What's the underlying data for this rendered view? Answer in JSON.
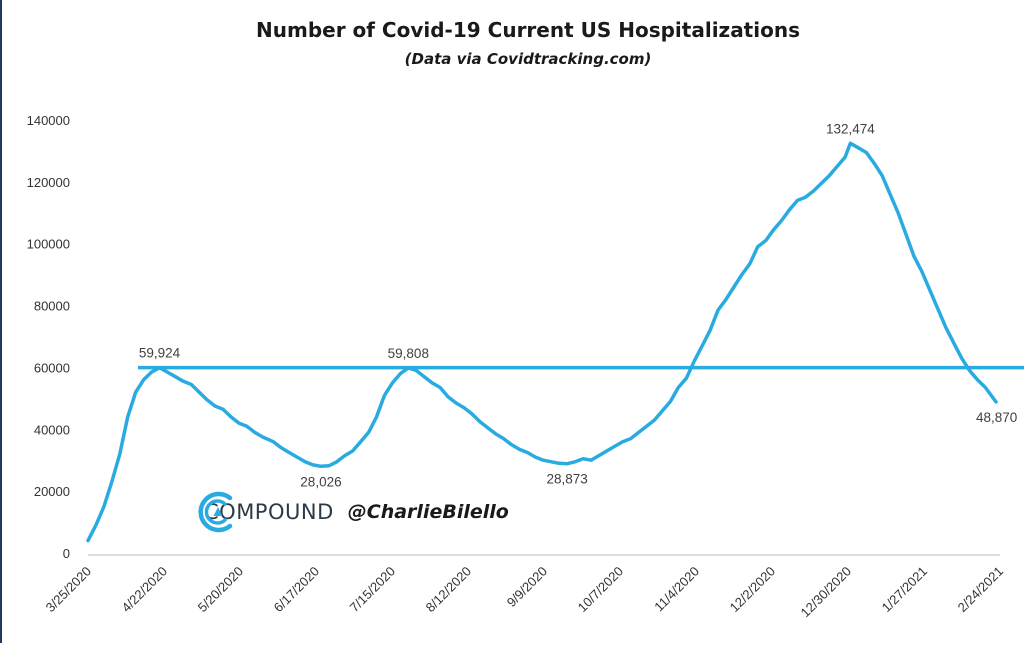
{
  "chart_data": {
    "type": "line",
    "title": "Number of Covid-19 Current US Hospitalizations",
    "subtitle": "(Data via Covidtracking.com)",
    "xlabel": "",
    "ylabel": "",
    "ylim": [
      0,
      140000
    ],
    "yticks": [
      0,
      20000,
      40000,
      60000,
      80000,
      100000,
      120000,
      140000
    ],
    "ytick_labels": [
      "0",
      "20000",
      "40000",
      "60000",
      "80000",
      "100000",
      "120000",
      "140000"
    ],
    "xticks": [
      "3/25/2020",
      "4/22/2020",
      "5/20/2020",
      "6/17/2020",
      "7/15/2020",
      "8/12/2020",
      "9/9/2020",
      "10/7/2020",
      "11/4/2020",
      "12/2/2020",
      "12/30/2020",
      "1/27/2021",
      "2/24/2021"
    ],
    "x_first": "2020-03-25",
    "x_last": "2021-03-03",
    "series_color": "#29abe2",
    "reference_line": {
      "y": 59924,
      "color": "#29abe2"
    },
    "series": [
      {
        "points": [
          [
            "2020-03-25",
            4000
          ],
          [
            "2020-03-28",
            9000
          ],
          [
            "2020-03-31",
            15000
          ],
          [
            "2020-04-03",
            23000
          ],
          [
            "2020-04-06",
            32000
          ],
          [
            "2020-04-09",
            44000
          ],
          [
            "2020-04-12",
            52000
          ],
          [
            "2020-04-15",
            56000
          ],
          [
            "2020-04-18",
            58500
          ],
          [
            "2020-04-21",
            59924
          ],
          [
            "2020-04-24",
            58500
          ],
          [
            "2020-04-27",
            57000
          ],
          [
            "2020-04-30",
            55500
          ],
          [
            "2020-05-03",
            54500
          ],
          [
            "2020-05-06",
            52000
          ],
          [
            "2020-05-09",
            49500
          ],
          [
            "2020-05-12",
            47500
          ],
          [
            "2020-05-15",
            46500
          ],
          [
            "2020-05-18",
            44000
          ],
          [
            "2020-05-21",
            42000
          ],
          [
            "2020-05-24",
            41000
          ],
          [
            "2020-05-27",
            39000
          ],
          [
            "2020-05-30",
            37500
          ],
          [
            "2020-06-03",
            36000
          ],
          [
            "2020-06-06",
            34000
          ],
          [
            "2020-06-09",
            32500
          ],
          [
            "2020-06-12",
            31000
          ],
          [
            "2020-06-15",
            29500
          ],
          [
            "2020-06-18",
            28500
          ],
          [
            "2020-06-21",
            28026
          ],
          [
            "2020-06-24",
            28200
          ],
          [
            "2020-06-27",
            29500
          ],
          [
            "2020-06-30",
            31500
          ],
          [
            "2020-07-03",
            33000
          ],
          [
            "2020-07-06",
            36000
          ],
          [
            "2020-07-09",
            39000
          ],
          [
            "2020-07-12",
            44000
          ],
          [
            "2020-07-15",
            51000
          ],
          [
            "2020-07-18",
            55000
          ],
          [
            "2020-07-21",
            58000
          ],
          [
            "2020-07-24",
            59808
          ],
          [
            "2020-07-27",
            59000
          ],
          [
            "2020-07-30",
            57000
          ],
          [
            "2020-08-02",
            55000
          ],
          [
            "2020-08-05",
            53500
          ],
          [
            "2020-08-08",
            50500
          ],
          [
            "2020-08-11",
            48500
          ],
          [
            "2020-08-14",
            47000
          ],
          [
            "2020-08-17",
            45000
          ],
          [
            "2020-08-20",
            42500
          ],
          [
            "2020-08-23",
            40500
          ],
          [
            "2020-08-26",
            38500
          ],
          [
            "2020-08-29",
            37000
          ],
          [
            "2020-09-01",
            35000
          ],
          [
            "2020-09-04",
            33500
          ],
          [
            "2020-09-07",
            32500
          ],
          [
            "2020-09-10",
            31000
          ],
          [
            "2020-09-13",
            30000
          ],
          [
            "2020-09-16",
            29500
          ],
          [
            "2020-09-19",
            29000
          ],
          [
            "2020-09-22",
            28873
          ],
          [
            "2020-09-25",
            29500
          ],
          [
            "2020-09-28",
            30500
          ],
          [
            "2020-10-01",
            30000
          ],
          [
            "2020-10-04",
            31500
          ],
          [
            "2020-10-07",
            33000
          ],
          [
            "2020-10-10",
            34500
          ],
          [
            "2020-10-13",
            36000
          ],
          [
            "2020-10-16",
            37000
          ],
          [
            "2020-10-19",
            39000
          ],
          [
            "2020-10-22",
            41000
          ],
          [
            "2020-10-25",
            43000
          ],
          [
            "2020-10-28",
            46000
          ],
          [
            "2020-10-31",
            49000
          ],
          [
            "2020-11-03",
            53500
          ],
          [
            "2020-11-06",
            56500
          ],
          [
            "2020-11-09",
            62000
          ],
          [
            "2020-11-12",
            67000
          ],
          [
            "2020-11-15",
            72000
          ],
          [
            "2020-11-18",
            78500
          ],
          [
            "2020-11-21",
            82000
          ],
          [
            "2020-11-24",
            86000
          ],
          [
            "2020-11-27",
            90000
          ],
          [
            "2020-11-30",
            93500
          ],
          [
            "2020-12-03",
            99000
          ],
          [
            "2020-12-06",
            101000
          ],
          [
            "2020-12-09",
            104500
          ],
          [
            "2020-12-12",
            107500
          ],
          [
            "2020-12-15",
            111000
          ],
          [
            "2020-12-18",
            114000
          ],
          [
            "2020-12-21",
            115000
          ],
          [
            "2020-12-24",
            117000
          ],
          [
            "2020-12-27",
            119500
          ],
          [
            "2020-12-30",
            122000
          ],
          [
            "2021-01-02",
            125000
          ],
          [
            "2021-01-05",
            128000
          ],
          [
            "2021-01-07",
            132474
          ],
          [
            "2021-01-10",
            131000
          ],
          [
            "2021-01-13",
            129500
          ],
          [
            "2021-01-16",
            126000
          ],
          [
            "2021-01-19",
            122000
          ],
          [
            "2021-01-22",
            116000
          ],
          [
            "2021-01-25",
            110000
          ],
          [
            "2021-01-28",
            103000
          ],
          [
            "2021-01-31",
            96000
          ],
          [
            "2021-02-03",
            91000
          ],
          [
            "2021-02-06",
            85000
          ],
          [
            "2021-02-09",
            79000
          ],
          [
            "2021-02-12",
            73000
          ],
          [
            "2021-02-15",
            68000
          ],
          [
            "2021-02-18",
            63000
          ],
          [
            "2021-02-21",
            59000
          ],
          [
            "2021-02-24",
            56000
          ],
          [
            "2021-02-27",
            53500
          ],
          [
            "2021-03-03",
            48870
          ]
        ]
      }
    ],
    "annotations": [
      {
        "x": "2020-04-21",
        "y": 59924,
        "text": "59,924",
        "position": "above"
      },
      {
        "x": "2020-06-21",
        "y": 28026,
        "text": "28,026",
        "position": "below"
      },
      {
        "x": "2020-07-24",
        "y": 59808,
        "text": "59,808",
        "position": "above"
      },
      {
        "x": "2020-09-22",
        "y": 28873,
        "text": "28,873",
        "position": "below"
      },
      {
        "x": "2021-01-07",
        "y": 132474,
        "text": "132,474",
        "position": "above"
      },
      {
        "x": "2021-03-03",
        "y": 48870,
        "text": "48,870",
        "position": "below"
      }
    ],
    "grid": false,
    "legend": "none"
  },
  "branding": {
    "name": "COMPOUND",
    "handle": "@CharlieBilello",
    "logo_icon": "compound-c-logo-icon",
    "logo_color": "#29abe2"
  }
}
